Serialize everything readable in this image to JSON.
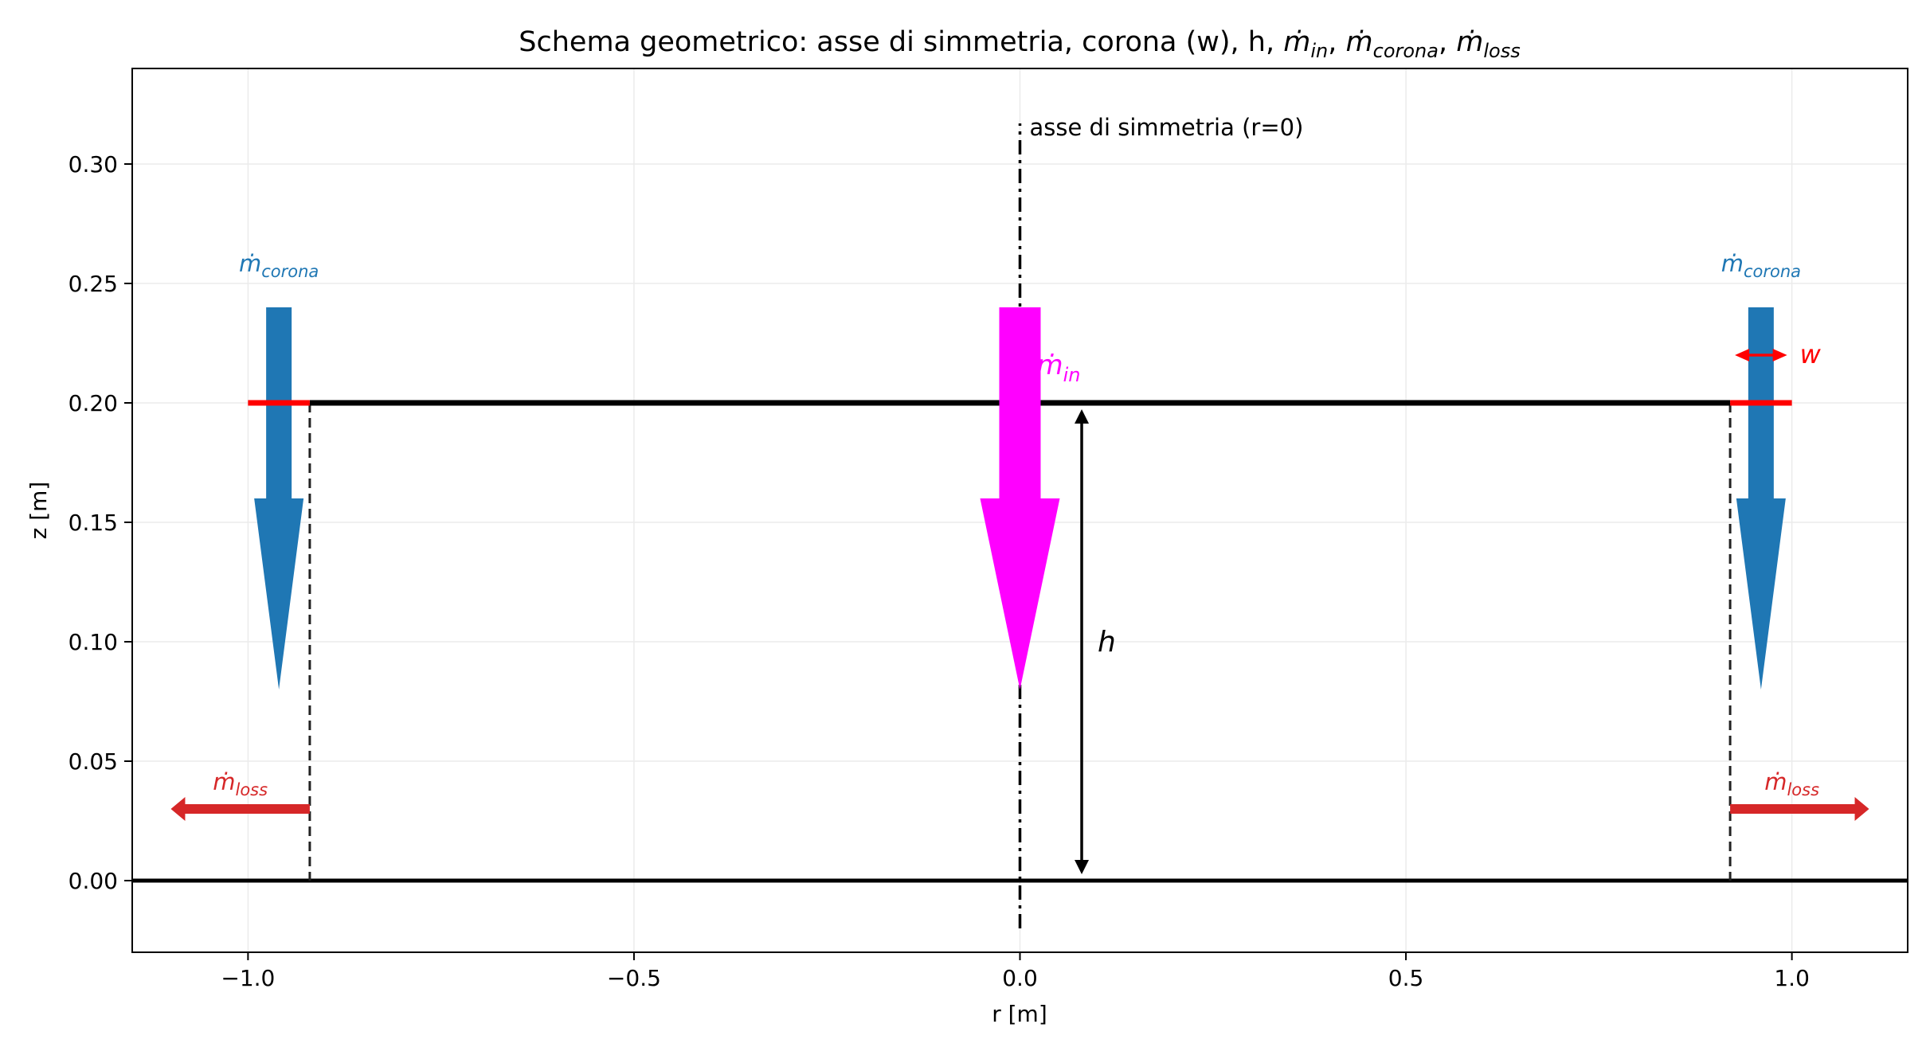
{
  "title": {
    "prefix": "Schema geometrico: asse di simmetria, corona (w), h, ",
    "m_in_sub": "in",
    "m_corona_sub": "corona",
    "m_loss_sub": "loss",
    "sep": ", "
  },
  "axes": {
    "xlabel": "r [m]",
    "ylabel": "z [m]",
    "xlim": [
      -1.15,
      1.15
    ],
    "ylim": [
      -0.03,
      0.34
    ],
    "xticks": [
      -1.0,
      -0.5,
      0.0,
      0.5,
      1.0
    ],
    "xtick_labels": [
      "−1.0",
      "−0.5",
      "0.0",
      "0.5",
      "1.0"
    ],
    "yticks": [
      0.0,
      0.05,
      0.1,
      0.15,
      0.2,
      0.25,
      0.3
    ],
    "ytick_labels": [
      "0.00",
      "0.05",
      "0.10",
      "0.15",
      "0.20",
      "0.25",
      "0.30"
    ],
    "grid": true
  },
  "labels": {
    "axis_text": "asse di simmetria (r=0)",
    "m_symbol": "m",
    "m_in_sub": "in",
    "m_corona_sub": "corona",
    "m_loss_sub": "loss",
    "h": "h",
    "w": "w"
  },
  "geometry": {
    "top_z": 0.2,
    "bottom_z": 0.0,
    "inner_r": 0.92,
    "outer_r": 1.0,
    "axis_z_range": [
      -0.02,
      0.317
    ],
    "inflow_arrow": {
      "r": 0.0,
      "z_from": 0.24,
      "z_to": 0.08
    },
    "corona_arrows": [
      {
        "r": -0.96,
        "z_from": 0.24,
        "z_to": 0.08
      },
      {
        "r": 0.96,
        "z_from": 0.24,
        "z_to": 0.08
      }
    ],
    "loss_arrows": [
      {
        "z": 0.03,
        "r_from": -0.92,
        "r_to": -1.1
      },
      {
        "z": 0.03,
        "r_from": 0.92,
        "r_to": 1.1
      }
    ],
    "h_dimension": {
      "r": 0.08,
      "z_from": 0.0,
      "z_to": 0.2
    },
    "w_dimension": {
      "z": 0.22,
      "r_from": 0.92,
      "r_to": 1.0
    }
  },
  "colors": {
    "inflow": "#ff00ff",
    "corona": "#1f77b4",
    "loss": "#d62728",
    "rim": "#ff0000",
    "lines": "#000000",
    "grid": "#ebebeb"
  }
}
